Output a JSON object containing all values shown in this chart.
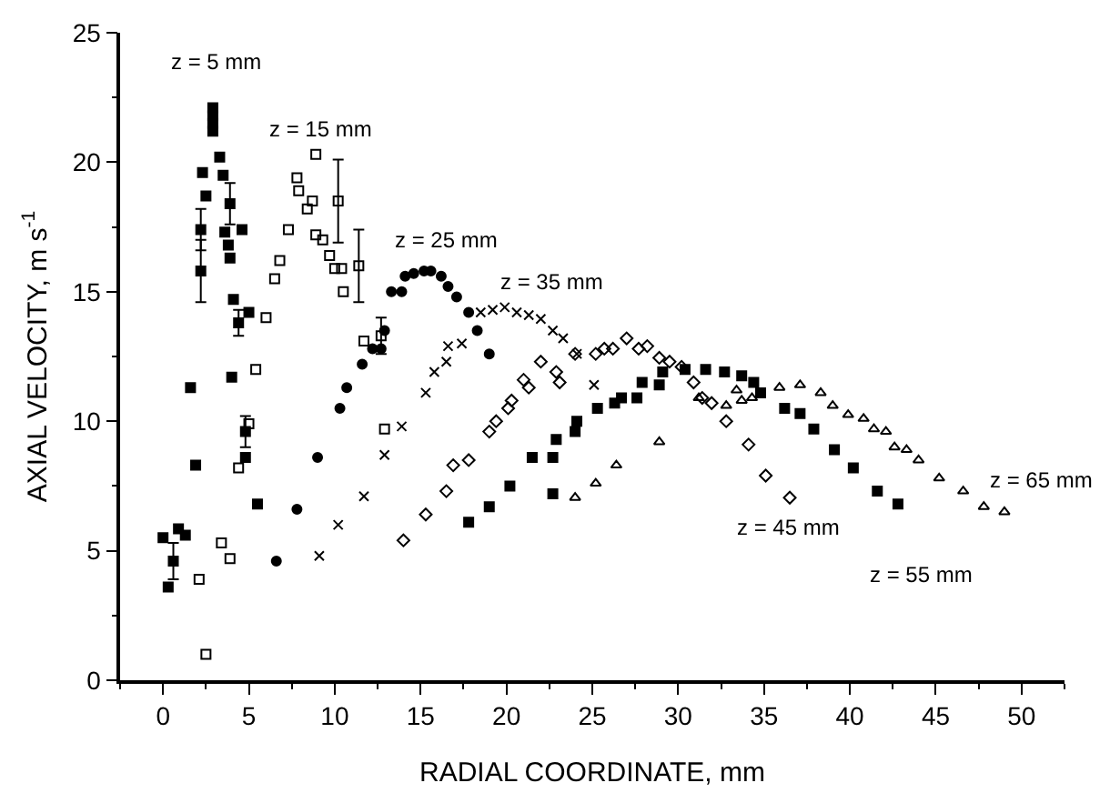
{
  "chart_data": {
    "type": "scatter",
    "xlabel": "RADIAL COORDINATE, mm",
    "ylabel": "AXIAL VELOCITY, m s$^{-1}$",
    "xlim": [
      -2.5,
      52.5
    ],
    "xticks": [
      0,
      5,
      10,
      15,
      20,
      25,
      30,
      35,
      40,
      45,
      50
    ],
    "ylim": [
      0,
      25
    ],
    "yticks": [
      0,
      5,
      10,
      15,
      20,
      25
    ],
    "grid": false,
    "legend": false,
    "series": [
      {
        "name": "z = 5 mm",
        "color": "#000000",
        "marker": "square",
        "x": [
          0,
          0.6,
          0.3,
          0.9,
          1.3,
          1.6,
          1.9,
          2.2,
          2.2,
          2.3,
          2.5,
          2.9,
          2.9,
          2.9,
          2.9,
          3.3,
          3.5,
          3.6,
          3.8,
          3.9,
          3.9,
          4.1,
          4.4,
          4.0,
          5.0,
          4.8,
          4.8,
          5.5,
          4.6
        ],
        "values": [
          5.5,
          4.6,
          3.6,
          5.85,
          5.6,
          11.3,
          8.3,
          15.8,
          17.4,
          19.6,
          18.7,
          22.1,
          21.8,
          21.5,
          21.2,
          20.2,
          19.5,
          17.3,
          16.8,
          18.4,
          16.3,
          14.7,
          13.8,
          11.7,
          14.2,
          9.6,
          8.6,
          6.8,
          17.4
        ],
        "errors": [
          null,
          0.7,
          null,
          null,
          null,
          null,
          null,
          1.2,
          0.8,
          null,
          null,
          null,
          null,
          null,
          null,
          null,
          null,
          null,
          null,
          0.8,
          null,
          null,
          0.5,
          null,
          null,
          0.6,
          null,
          null,
          null
        ]
      },
      {
        "name": "z = 15 mm",
        "color": "#000000",
        "marker": "square",
        "x": [
          2.5,
          2.1,
          3.4,
          3.9,
          4.4,
          5.0,
          5.4,
          6.0,
          6.5,
          6.8,
          7.3,
          7.8,
          7.9,
          8.4,
          8.7,
          8.9,
          8.9,
          9.3,
          9.7,
          10.0,
          10.4,
          10.2,
          10.5,
          11.4,
          11.7,
          12.7,
          12.9
        ],
        "values": [
          1.0,
          3.9,
          5.3,
          4.7,
          8.2,
          9.9,
          12.0,
          14.0,
          15.5,
          16.2,
          17.4,
          19.4,
          18.9,
          18.2,
          18.5,
          20.3,
          17.2,
          17.0,
          16.4,
          15.9,
          15.9,
          18.5,
          15.0,
          16.0,
          13.1,
          13.3,
          9.7
        ],
        "errors": [
          null,
          null,
          null,
          null,
          null,
          null,
          null,
          null,
          null,
          null,
          null,
          null,
          null,
          null,
          null,
          null,
          null,
          null,
          null,
          null,
          null,
          1.6,
          null,
          1.4,
          null,
          0.7,
          null
        ]
      },
      {
        "name": "z = 25 mm",
        "color": "#000000",
        "marker": "circle",
        "x": [
          6.6,
          7.8,
          9.0,
          10.3,
          10.7,
          11.6,
          12.2,
          12.7,
          12.9,
          13.3,
          13.9,
          14.1,
          14.6,
          15.2,
          15.6,
          16.2,
          16.6,
          17.1,
          17.8,
          18.3,
          19.0
        ],
        "values": [
          4.6,
          6.6,
          8.6,
          10.5,
          11.3,
          12.2,
          12.8,
          12.8,
          13.5,
          15.0,
          15.0,
          15.6,
          15.7,
          15.8,
          15.8,
          15.6,
          15.2,
          14.8,
          14.2,
          13.5,
          12.6
        ]
      },
      {
        "name": "z = 35 mm",
        "color": "#000000",
        "marker": "cross",
        "x": [
          9.1,
          10.2,
          11.7,
          12.9,
          13.9,
          15.3,
          15.8,
          16.5,
          16.6,
          17.4,
          18.5,
          19.2,
          19.9,
          20.6,
          21.3,
          22.0,
          22.7,
          23.3,
          24.1,
          25.1
        ],
        "values": [
          4.8,
          6.0,
          7.1,
          8.7,
          9.8,
          11.1,
          11.9,
          12.3,
          12.9,
          13.0,
          14.2,
          14.3,
          14.4,
          14.2,
          14.1,
          13.95,
          13.5,
          13.2,
          12.6,
          11.4
        ]
      },
      {
        "name": "z = 45 mm",
        "color": "#000000",
        "marker": "diamond",
        "x": [
          14.0,
          15.3,
          16.5,
          16.9,
          17.8,
          19.0,
          19.4,
          20.1,
          20.3,
          21.0,
          21.3,
          22.0,
          22.9,
          23.1,
          24.0,
          25.2,
          25.7,
          26.2,
          27.0,
          27.7,
          28.2,
          28.9,
          29.5,
          30.2,
          30.9,
          31.4,
          31.95,
          32.8,
          34.1,
          35.1,
          36.5
        ],
        "values": [
          5.4,
          6.4,
          7.3,
          8.3,
          8.5,
          9.6,
          10.0,
          10.5,
          10.8,
          11.6,
          11.3,
          12.3,
          11.9,
          11.5,
          12.6,
          12.6,
          12.8,
          12.8,
          13.2,
          12.8,
          12.9,
          12.45,
          12.3,
          12.1,
          11.5,
          10.9,
          10.7,
          10.0,
          9.1,
          7.9,
          7.05
        ]
      },
      {
        "name": "z = 55 mm",
        "color": "#000000",
        "marker": "square",
        "x": [
          17.8,
          19.0,
          20.2,
          21.5,
          22.7,
          22.7,
          22.9,
          24.0,
          24.1,
          25.3,
          26.3,
          26.7,
          27.6,
          27.9,
          28.9,
          29.1,
          30.4,
          31.6,
          32.7,
          33.7,
          34.4,
          34.8,
          36.2,
          37.1,
          37.9,
          39.1,
          40.2,
          41.6,
          42.8
        ],
        "values": [
          6.1,
          6.7,
          7.5,
          8.6,
          7.2,
          8.6,
          9.3,
          9.6,
          10.0,
          10.5,
          10.7,
          10.9,
          10.9,
          11.5,
          11.4,
          11.9,
          12.0,
          12.0,
          11.9,
          11.75,
          11.5,
          11.1,
          10.5,
          10.3,
          9.7,
          8.9,
          8.2,
          7.3,
          6.8
        ]
      },
      {
        "name": "z = 65 mm",
        "color": "#000000",
        "marker": "triangle",
        "x": [
          24.0,
          25.2,
          26.4,
          28.9,
          31.2,
          32.8,
          33.4,
          33.7,
          34.3,
          35.9,
          37.1,
          38.3,
          39.0,
          39.9,
          40.8,
          41.4,
          42.1,
          42.6,
          43.3,
          44.0,
          45.2,
          46.6,
          47.8,
          49.0
        ],
        "values": [
          7.05,
          7.6,
          8.3,
          9.2,
          10.9,
          10.6,
          11.2,
          10.8,
          10.9,
          11.3,
          11.4,
          11.1,
          10.6,
          10.25,
          10.1,
          9.7,
          9.6,
          9.0,
          8.9,
          8.5,
          7.8,
          7.3,
          6.7,
          6.5
        ]
      }
    ]
  }
}
